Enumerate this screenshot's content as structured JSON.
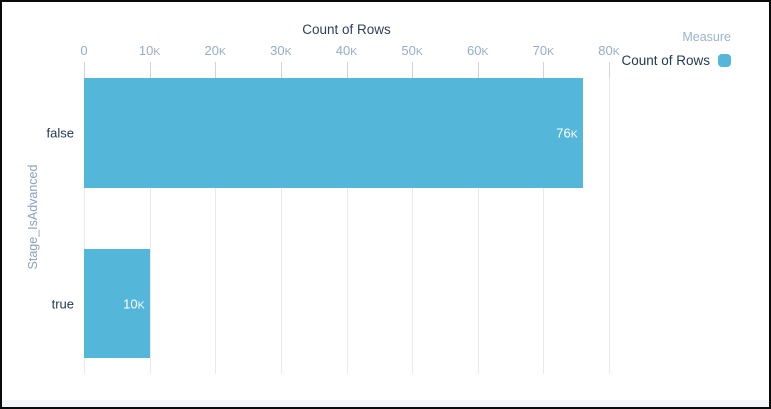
{
  "chart_data": {
    "type": "bar",
    "orientation": "horizontal",
    "title": "Count of Rows",
    "xlabel": "Count of Rows",
    "ylabel": "Stage_IsAdvanced",
    "categories": [
      "false",
      "true"
    ],
    "values": [
      76000,
      10000
    ],
    "value_labels": [
      "76K",
      "10K"
    ],
    "xlim": [
      0,
      80000
    ],
    "xticks": [
      {
        "value": 0,
        "label": "0"
      },
      {
        "value": 10000,
        "label": "10K"
      },
      {
        "value": 20000,
        "label": "20K"
      },
      {
        "value": 30000,
        "label": "30K"
      },
      {
        "value": 40000,
        "label": "40K"
      },
      {
        "value": 50000,
        "label": "50K"
      },
      {
        "value": 60000,
        "label": "60K"
      },
      {
        "value": 70000,
        "label": "70K"
      },
      {
        "value": 80000,
        "label": "80K"
      }
    ],
    "grid": true,
    "bar_color": "#54b6d8",
    "legend": {
      "title": "Measure",
      "position": "top-right",
      "entries": [
        {
          "label": "Count of Rows",
          "color": "#54b6d8"
        }
      ]
    }
  },
  "colors": {
    "bar": "#54b6d8",
    "axis_title_text": "#2e3f5a",
    "tick_text": "#95adc8",
    "category_text": "#233a52",
    "y_axis_label_text": "#8aa1bd",
    "legend_title_text": "#9cb3ce",
    "gridline": "#e6ebf1",
    "value_label_text": "#ffffff",
    "footer_strip": "#f2f5f9"
  }
}
